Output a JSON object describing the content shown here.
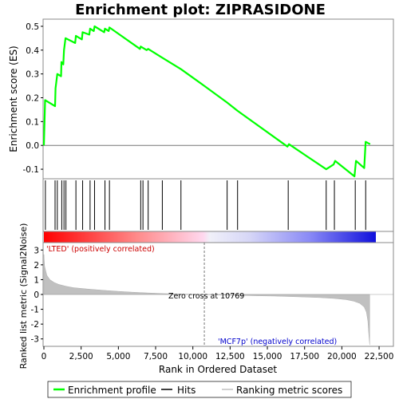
{
  "chart_data": {
    "type": "line",
    "title": "Enrichment plot: ZIPRASIDONE",
    "xlabel": "Rank in Ordered Dataset",
    "xlim": [
      0,
      22283
    ],
    "x_ticks": [
      "0",
      "2,500",
      "5,000",
      "7,500",
      "10,000",
      "12,500",
      "15,000",
      "17,500",
      "20,000",
      "22,500"
    ],
    "x_tick_values": [
      0,
      2500,
      5000,
      7500,
      10000,
      12500,
      15000,
      17500,
      20000,
      22500
    ],
    "es_panel": {
      "ylabel": "Enrichment score (ES)",
      "ylim": [
        -0.14,
        0.53
      ],
      "y_ticks": [
        "-0.1",
        "0.0",
        "0.1",
        "0.2",
        "0.3",
        "0.4",
        "0.5"
      ],
      "y_tick_values": [
        -0.1,
        0.0,
        0.1,
        0.2,
        0.3,
        0.4,
        0.5
      ],
      "series_name": "Enrichment profile",
      "color": "#00ff00",
      "x": [
        0,
        80,
        750,
        780,
        900,
        1150,
        1180,
        1300,
        1350,
        1450,
        2100,
        2150,
        2550,
        2600,
        3050,
        3100,
        3350,
        3400,
        4050,
        4100,
        4350,
        4400,
        6450,
        6500,
        6900,
        7000,
        7900,
        9200,
        10769,
        12300,
        13000,
        16350,
        16450,
        18950,
        19450,
        19550,
        20850,
        20950,
        21500,
        21600,
        21900
      ],
      "y": [
        0.0,
        0.19,
        0.165,
        0.24,
        0.3,
        0.29,
        0.35,
        0.34,
        0.4,
        0.45,
        0.43,
        0.46,
        0.445,
        0.475,
        0.465,
        0.49,
        0.48,
        0.5,
        0.475,
        0.49,
        0.48,
        0.495,
        0.405,
        0.415,
        0.4,
        0.405,
        0.37,
        0.32,
        0.25,
        0.18,
        0.145,
        -0.005,
        0.005,
        -0.1,
        -0.08,
        -0.065,
        -0.13,
        -0.065,
        -0.095,
        0.015,
        0.005
      ]
    },
    "hits": {
      "series_name": "Hits",
      "positions": [
        100,
        750,
        900,
        1200,
        1350,
        1480,
        2150,
        2600,
        3100,
        3400,
        4100,
        4400,
        6500,
        6650,
        7000,
        7950,
        9200,
        12300,
        13000,
        16400,
        18950,
        19500,
        20900,
        21600
      ]
    },
    "metric_panel": {
      "ylabel": "Ranked list metric (Signal2Noise)",
      "ylim": [
        -3.5,
        3.5
      ],
      "y_ticks": [
        "-3",
        "-2",
        "-1",
        "0",
        "1",
        "2",
        "3"
      ],
      "y_tick_values": [
        -3,
        -2,
        -1,
        0,
        1,
        2,
        3
      ],
      "series_name": "Ranking metric scores",
      "x": [
        0,
        50,
        200,
        400,
        700,
        1000,
        1500,
        2000,
        3000,
        4000,
        5000,
        6000,
        7000,
        8000,
        9000,
        10000,
        10769,
        11500,
        12500,
        13500,
        14500,
        15500,
        16500,
        17500,
        18500,
        19500,
        20300,
        20800,
        21200,
        21500,
        21650,
        21750,
        21800,
        21870
      ],
      "y": [
        2.7,
        1.9,
        1.3,
        1.0,
        0.8,
        0.68,
        0.55,
        0.46,
        0.36,
        0.28,
        0.21,
        0.15,
        0.1,
        0.06,
        0.03,
        0.01,
        0.0,
        -0.02,
        -0.05,
        -0.07,
        -0.09,
        -0.11,
        -0.14,
        -0.17,
        -0.21,
        -0.27,
        -0.35,
        -0.45,
        -0.6,
        -0.85,
        -1.2,
        -1.8,
        -2.6,
        -3.4
      ],
      "zero_cross_label": "Zero cross at 10769",
      "zero_cross": 10769,
      "pos_label": "'LTED' (positively correlated)",
      "neg_label": "'MCF7p' (negatively correlated)"
    },
    "legend": [
      "Enrichment profile",
      "Hits",
      "Ranking metric scores"
    ]
  }
}
